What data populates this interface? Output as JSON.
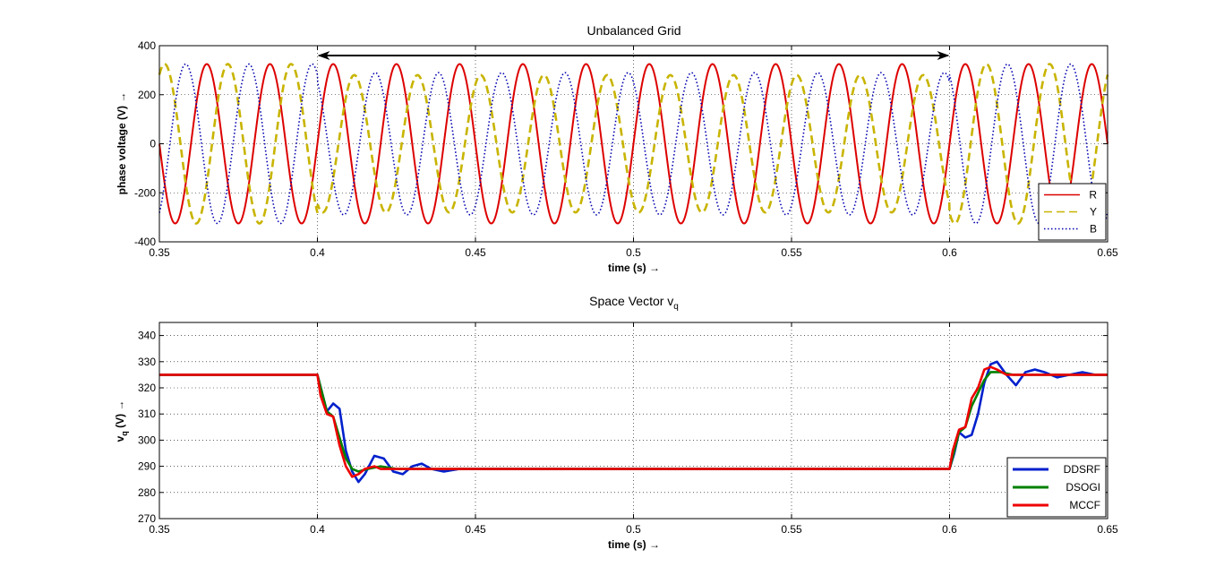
{
  "chart_data": [
    {
      "type": "line",
      "title": "Unbalanced Grid",
      "xlabel": "time (s) →",
      "ylabel": "phase voltage (V) →",
      "xlim": [
        0.35,
        0.65
      ],
      "ylim": [
        -400,
        400
      ],
      "xticks": [
        "0.35",
        "0.4",
        "0.45",
        "0.5",
        "0.55",
        "0.6",
        "0.65"
      ],
      "yticks": [
        "-400",
        "-200",
        "0",
        "200",
        "400"
      ],
      "grid": true,
      "legend_position": "bottom-right",
      "annotation": {
        "type": "double-arrow",
        "x_start": 0.4,
        "x_end": 0.6,
        "y": 360
      },
      "series": [
        {
          "name": "R",
          "color": "#dd0000",
          "style": "solid",
          "frequency_hz": 50,
          "phase_deg": 0,
          "amplitude_normal": 325,
          "amplitude_unbalanced": 325
        },
        {
          "name": "Y",
          "color": "#c8b400",
          "style": "dashed",
          "frequency_hz": 50,
          "phase_deg": -120,
          "amplitude_normal": 325,
          "amplitude_unbalanced": 280
        },
        {
          "name": "B",
          "color": "#0000b0",
          "style": "dotted",
          "frequency_hz": 50,
          "phase_deg": 120,
          "amplitude_normal": 325,
          "amplitude_unbalanced": 290
        }
      ]
    },
    {
      "type": "line",
      "title": "Space Vector v",
      "title_subscript": "q",
      "xlabel": "time (s) →",
      "ylabel": "v",
      "ylabel_subscript": "q",
      "ylabel_suffix": " (V) →",
      "xlim": [
        0.35,
        0.65
      ],
      "ylim": [
        270,
        345
      ],
      "xticks": [
        "0.35",
        "0.4",
        "0.45",
        "0.5",
        "0.55",
        "0.6",
        "0.65"
      ],
      "yticks": [
        "270",
        "280",
        "290",
        "300",
        "310",
        "320",
        "330",
        "340"
      ],
      "grid": true,
      "legend_position": "bottom-right",
      "series": [
        {
          "name": "DDSRF",
          "color": "#0020cc",
          "x": [
            0.35,
            0.4,
            0.4015,
            0.403,
            0.405,
            0.407,
            0.409,
            0.411,
            0.413,
            0.415,
            0.418,
            0.421,
            0.424,
            0.427,
            0.43,
            0.433,
            0.436,
            0.44,
            0.445,
            0.45,
            0.46,
            0.5,
            0.55,
            0.6,
            0.6015,
            0.603,
            0.605,
            0.607,
            0.609,
            0.611,
            0.613,
            0.615,
            0.618,
            0.621,
            0.624,
            0.627,
            0.63,
            0.634,
            0.638,
            0.642,
            0.646,
            0.65
          ],
          "values": [
            325,
            325,
            318,
            311,
            314,
            312,
            296,
            288,
            284,
            287,
            294,
            293,
            288,
            287,
            290,
            291,
            289,
            288,
            289,
            289,
            289,
            289,
            289,
            289,
            295,
            303,
            301,
            302,
            310,
            322,
            329,
            330,
            325,
            321,
            326,
            327,
            326,
            324,
            325,
            326,
            325,
            325
          ]
        },
        {
          "name": "DSOGI",
          "color": "#008000",
          "x": [
            0.35,
            0.4,
            0.4015,
            0.403,
            0.405,
            0.407,
            0.409,
            0.411,
            0.413,
            0.416,
            0.42,
            0.425,
            0.43,
            0.435,
            0.44,
            0.45,
            0.5,
            0.55,
            0.6,
            0.6015,
            0.603,
            0.605,
            0.607,
            0.609,
            0.611,
            0.613,
            0.616,
            0.62,
            0.625,
            0.63,
            0.64,
            0.65
          ],
          "values": [
            325,
            325,
            318,
            311,
            309,
            301,
            293,
            289,
            288,
            289,
            290,
            289,
            289,
            289,
            289,
            289,
            289,
            289,
            289,
            296,
            303,
            305,
            313,
            318,
            323,
            326,
            326,
            325,
            325,
            325,
            325,
            325
          ]
        },
        {
          "name": "MCCF",
          "color": "#ee0000",
          "x": [
            0.35,
            0.4,
            0.401,
            0.403,
            0.405,
            0.407,
            0.409,
            0.411,
            0.413,
            0.415,
            0.418,
            0.42,
            0.425,
            0.43,
            0.44,
            0.45,
            0.5,
            0.55,
            0.6,
            0.601,
            0.603,
            0.605,
            0.607,
            0.609,
            0.611,
            0.613,
            0.615,
            0.618,
            0.621,
            0.625,
            0.63,
            0.64,
            0.65
          ],
          "values": [
            325,
            325,
            317,
            310,
            309,
            298,
            290,
            286,
            287,
            289,
            290,
            289,
            289,
            289,
            289,
            289,
            289,
            289,
            289,
            296,
            304,
            305,
            316,
            320,
            327,
            328,
            327,
            325,
            325,
            325,
            325,
            325,
            325
          ]
        }
      ]
    }
  ]
}
